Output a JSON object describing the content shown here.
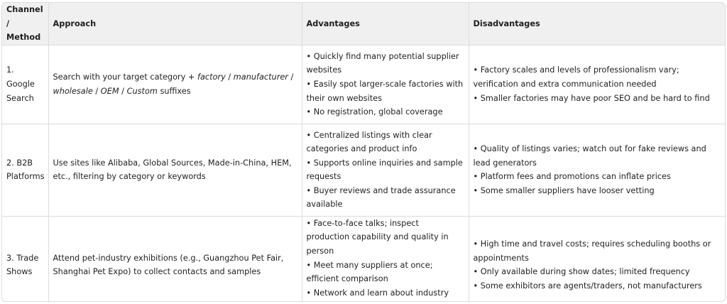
{
  "headers": {
    "channel": "Channel / Method",
    "approach": "Approach",
    "advantages": "Advantages",
    "disadvantages": "Disadvantages"
  },
  "rows": [
    {
      "channel": "1. Google Search",
      "approach": {
        "p1": "Search with your target category + ",
        "i1": "factory",
        "s1": " / ",
        "i2": "manufacturer",
        "s2": " / ",
        "i3": "wholesale",
        "s3": " / ",
        "i4": "OEM",
        "s4": " / ",
        "i5": "Custom",
        "p2": " suffixes"
      },
      "advantages": [
        "• Quickly find many potential supplier websites",
        "• Easily spot larger-scale factories with their own websites",
        "• No registration, global coverage"
      ],
      "disadvantages": [
        "• Factory scales and levels of professionalism vary; verification and extra communication needed",
        "• Smaller factories may have poor SEO and be hard to find"
      ]
    },
    {
      "channel": "2. B2B Platforms",
      "approach": "Use sites like Alibaba, Global Sources, Made-in-China, HEM, etc., filtering by category or keywords",
      "advantages": [
        "• Centralized listings with clear categories and product info",
        "• Supports online inquiries and sample requests",
        "• Buyer reviews and trade assurance available"
      ],
      "disadvantages": [
        "• Quality of listings varies; watch out for fake reviews and lead generators",
        "• Platform fees and promotions can inflate prices",
        "• Some smaller suppliers have looser vetting"
      ]
    },
    {
      "channel": "3. Trade Shows",
      "approach": "Attend pet-industry exhibitions (e.g., Guangzhou Pet Fair, Shanghai Pet Expo) to collect contacts and samples",
      "advantages": [
        "• Face-to-face talks; inspect production capability and quality in person",
        "• Meet many suppliers at once; efficient comparison",
        "• Network and learn about industry trends"
      ],
      "disadvantages": [
        "• High time and travel costs; requires scheduling booths or appointments",
        "• Only available during show dates; limited frequency",
        "• Some exhibitors are agents/traders, not manufacturers"
      ]
    }
  ]
}
